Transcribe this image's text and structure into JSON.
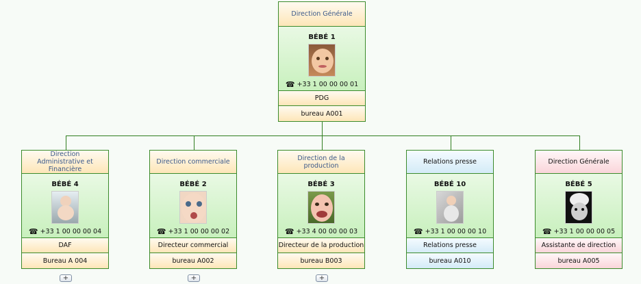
{
  "root": {
    "department": "Direction Générale",
    "name": "BÉBÉ 1",
    "phone": "+33 1 00 00 00 01",
    "role": "PDG",
    "office": "bureau A001",
    "theme": "orange"
  },
  "children": [
    {
      "department": "Direction Administrative et Financière",
      "name": "BÉBÉ 4",
      "phone": "+33 1 00 00 00 04",
      "role": "DAF",
      "office": "Bureau A 004",
      "theme": "orange",
      "expand": "+"
    },
    {
      "department": "Direction commerciale",
      "name": "BÉBÉ 2",
      "phone": "+33 1 00 00 00 02",
      "role": "Directeur commercial",
      "office": "bureau A002",
      "theme": "orange",
      "expand": "+"
    },
    {
      "department": "Direction de la production",
      "name": "BÉBÉ 3",
      "phone": "+33 4 00 00 00 03",
      "role": "Directeur de la production",
      "office": "bureau B003",
      "theme": "orange",
      "expand": "+"
    },
    {
      "department": "Relations presse",
      "name": "BÉBÉ 10",
      "phone": "+33 1 00 00 00 10",
      "role": "Relations presse",
      "office": "bureau A010",
      "theme": "blue"
    },
    {
      "department": "Direction Générale",
      "name": "BÉBÉ 5",
      "phone": "+33 1 00 00 00 05",
      "role": "Assistante de direction",
      "office": "bureau A005",
      "theme": "pink"
    }
  ],
  "icons": {
    "phone": "☎"
  }
}
